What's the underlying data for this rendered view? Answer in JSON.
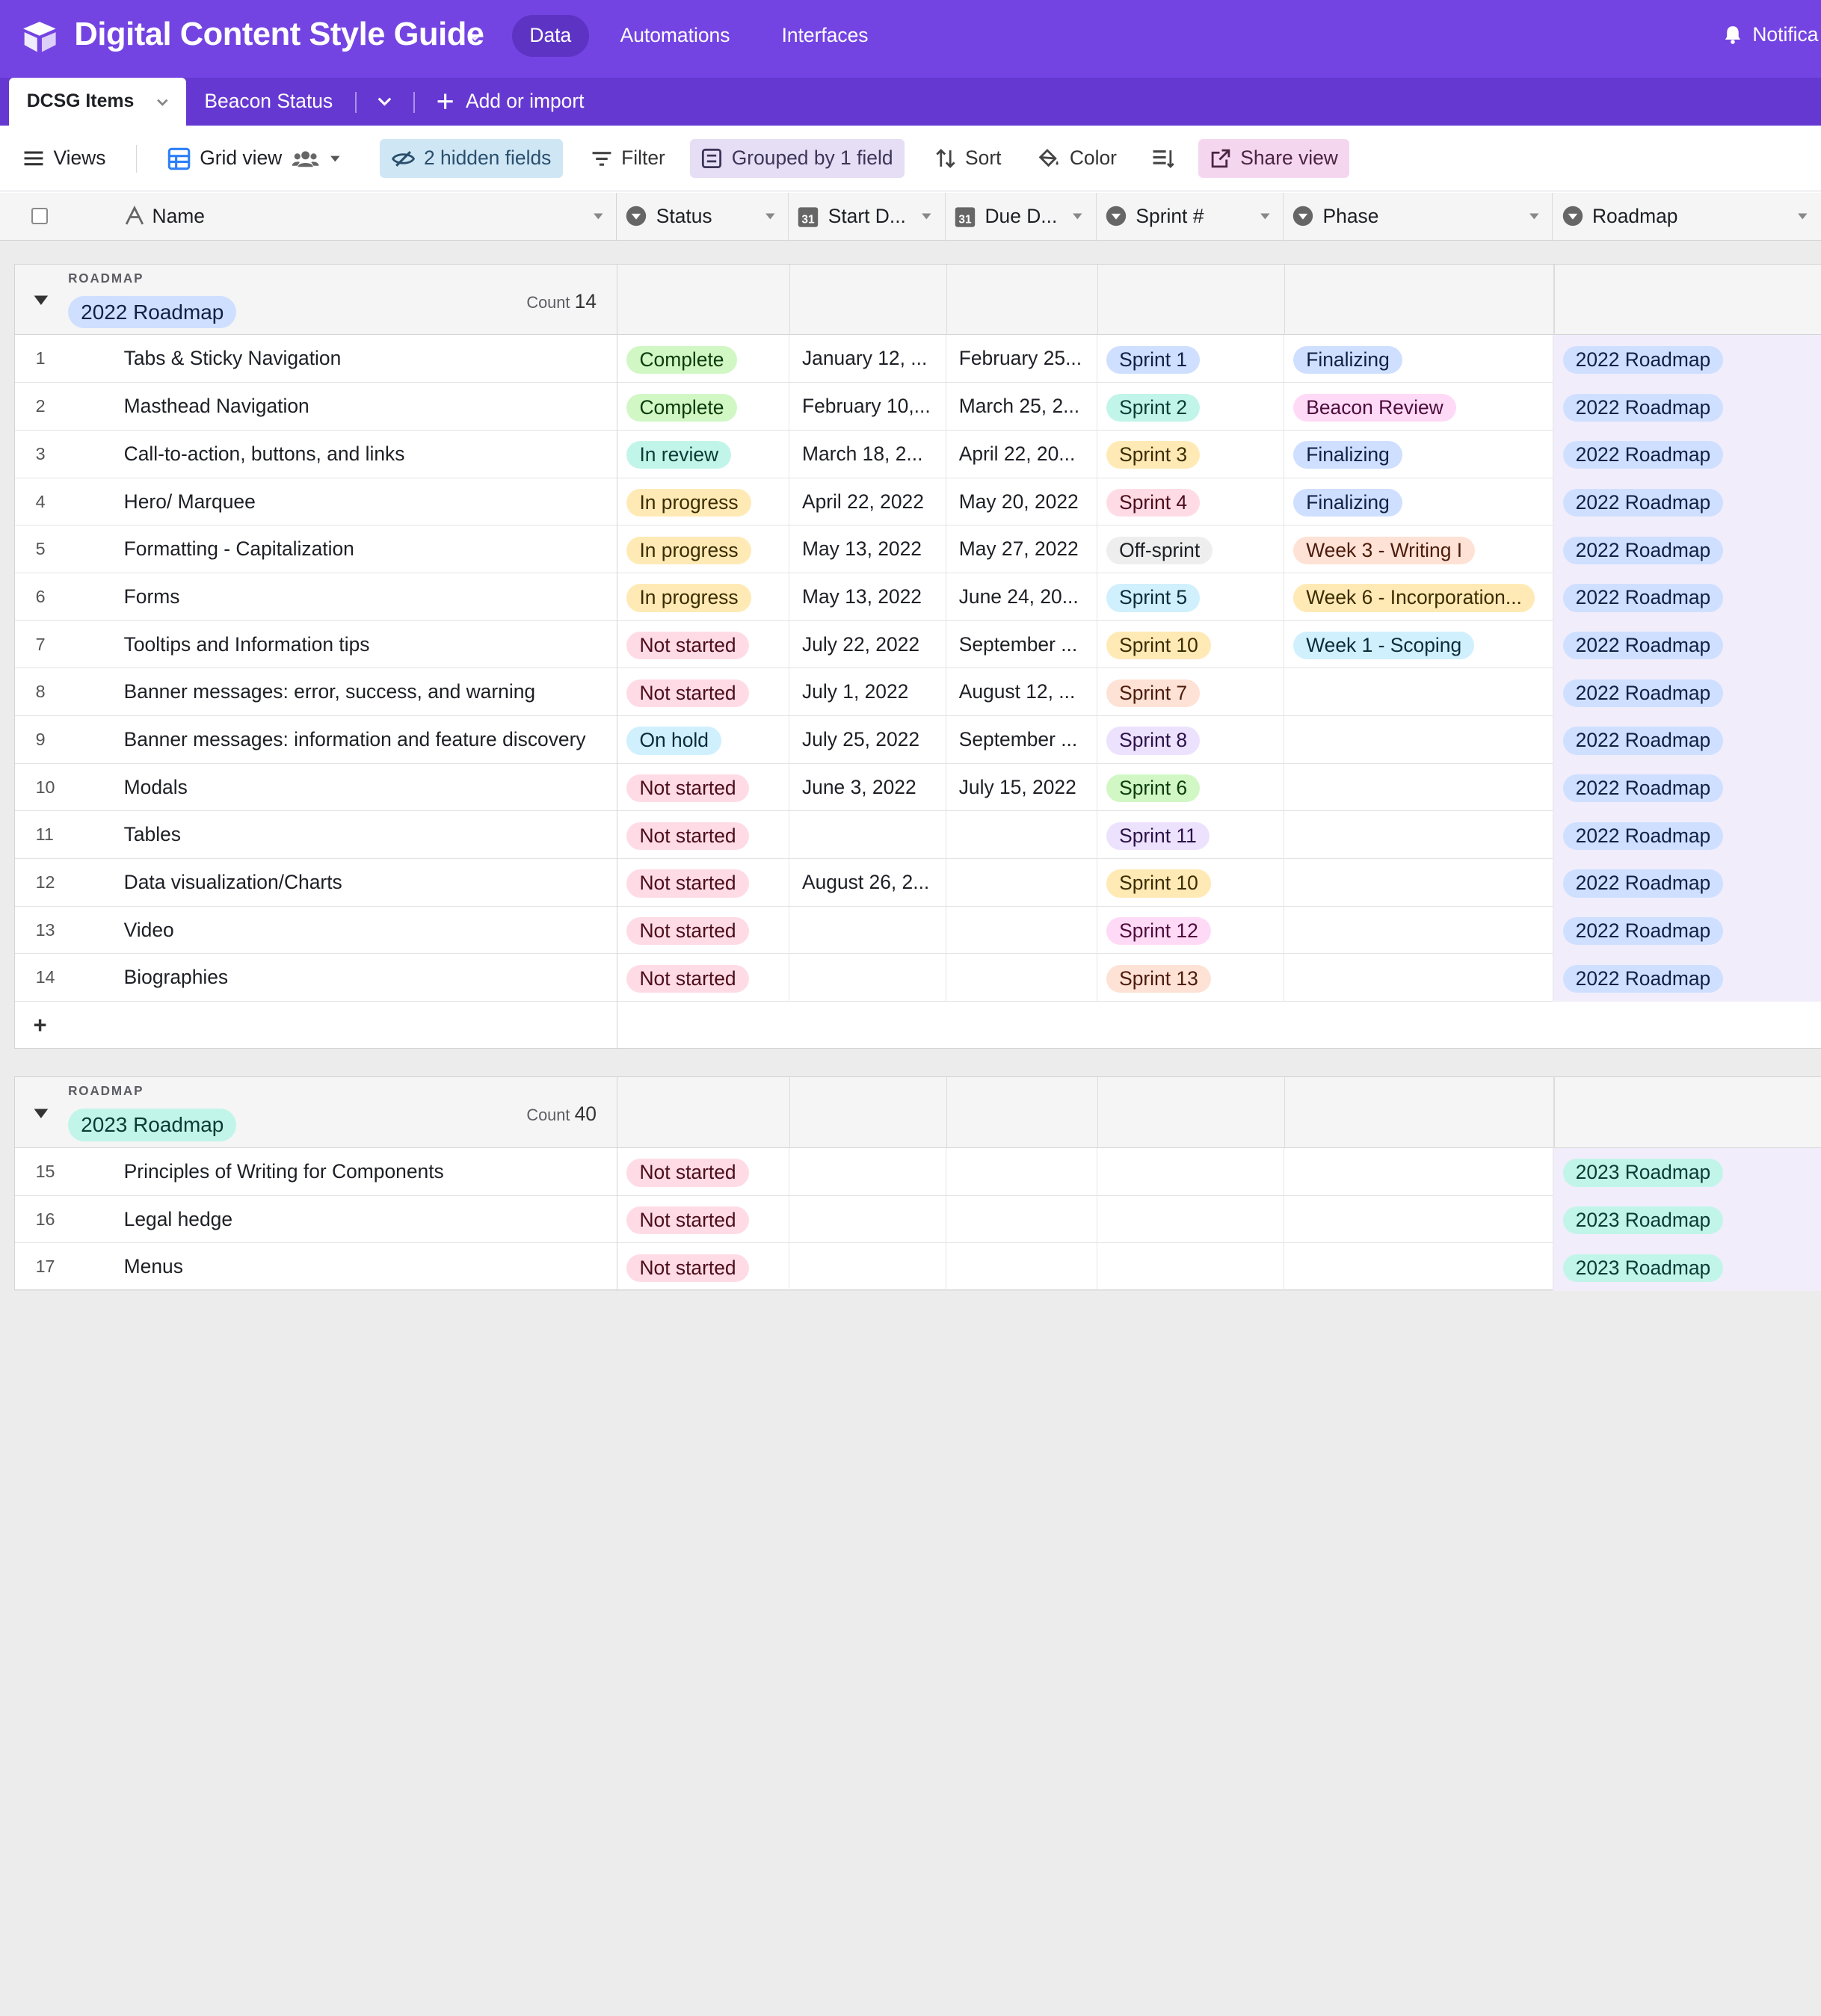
{
  "app": {
    "title": "Digital Content Style Guide",
    "nav": [
      "Data",
      "Automations",
      "Interfaces"
    ],
    "active_nav": "Data",
    "notifications_label": "Notifica"
  },
  "tabs": {
    "active": "DCSG Items",
    "other": "Beacon Status",
    "add_label": "Add or import"
  },
  "viewbar": {
    "views_label": "Views",
    "view_name": "Grid view",
    "hidden_fields": "2 hidden fields",
    "filter": "Filter",
    "grouped": "Grouped by 1 field",
    "sort": "Sort",
    "color": "Color",
    "share": "Share view"
  },
  "columns": {
    "name": "Name",
    "status": "Status",
    "start": "Start D...",
    "due": "Due D...",
    "sprint": "Sprint #",
    "phase": "Phase",
    "roadmap": "Roadmap",
    "date_icon_text": "31"
  },
  "colors": {
    "app_bar": "#7444e2",
    "status": {
      "Complete": [
        "#d1f7c4",
        "#0b3b0b"
      ],
      "In review": [
        "#c2f5e9",
        "#0b3b35"
      ],
      "In progress": [
        "#ffeab6",
        "#3b2c00"
      ],
      "Not started": [
        "#ffdce5",
        "#4c0c1c"
      ],
      "On hold": [
        "#d0f0fd",
        "#0b2b3b"
      ]
    },
    "sprint": {
      "Sprint 1": [
        "#cfdfff",
        "#102046"
      ],
      "Sprint 2": [
        "#c2f5e9",
        "#0b3b35"
      ],
      "Sprint 3": [
        "#ffeab6",
        "#3b2c00"
      ],
      "Sprint 4": [
        "#ffdce5",
        "#4c0c1c"
      ],
      "Off-sprint": [
        "#eeeeee",
        "#1d1f25"
      ],
      "Sprint 5": [
        "#d0f0fd",
        "#0b2b3b"
      ],
      "Sprint 10": [
        "#ffeab6",
        "#3b2c00"
      ],
      "Sprint 7": [
        "#fee2d5",
        "#4c1b0c"
      ],
      "Sprint 8": [
        "#ede2fe",
        "#2b1249"
      ],
      "Sprint 6": [
        "#d1f7c4",
        "#0b3b0b"
      ],
      "Sprint 11": [
        "#ede2fe",
        "#2b1249"
      ],
      "Sprint 12": [
        "#ffdaf6",
        "#4c0c3c"
      ],
      "Sprint 13": [
        "#fee2d5",
        "#4c1b0c"
      ]
    },
    "phase": {
      "Finalizing": [
        "#cfdfff",
        "#102046"
      ],
      "Beacon Review": [
        "#ffdaf6",
        "#4c0c3c"
      ],
      "Week 3 - Writing I": [
        "#fee2d5",
        "#4c1b0c"
      ],
      "Week 6 - Incorporation...": [
        "#ffeab6",
        "#3b2c00"
      ],
      "Week 1 - Scoping": [
        "#d0f0fd",
        "#0b2b3b"
      ]
    },
    "roadmap": {
      "2022 Roadmap": [
        "#cfdfff",
        "#102046"
      ],
      "2023 Roadmap": [
        "#c2f5e9",
        "#0b3b35"
      ]
    }
  },
  "groups": [
    {
      "field": "ROADMAP",
      "value": "2022 Roadmap",
      "count_label": "Count",
      "count": "14",
      "rows": [
        {
          "n": "1",
          "name": "Tabs & Sticky Navigation",
          "status": "Complete",
          "start": "January 12, ...",
          "due": "February 25...",
          "sprint": "Sprint 1",
          "phase": "Finalizing",
          "roadmap": "2022 Roadmap"
        },
        {
          "n": "2",
          "name": "Masthead Navigation",
          "status": "Complete",
          "start": "February 10,...",
          "due": "March 25, 2...",
          "sprint": "Sprint 2",
          "phase": "Beacon Review",
          "roadmap": "2022 Roadmap"
        },
        {
          "n": "3",
          "name": "Call-to-action, buttons, and links",
          "status": "In review",
          "start": "March 18, 2...",
          "due": "April 22, 20...",
          "sprint": "Sprint 3",
          "phase": "Finalizing",
          "roadmap": "2022 Roadmap"
        },
        {
          "n": "4",
          "name": "Hero/ Marquee",
          "status": "In progress",
          "start": "April 22, 2022",
          "due": "May 20, 2022",
          "sprint": "Sprint 4",
          "phase": "Finalizing",
          "roadmap": "2022 Roadmap"
        },
        {
          "n": "5",
          "name": "Formatting - Capitalization",
          "status": "In progress",
          "start": "May 13, 2022",
          "due": "May 27, 2022",
          "sprint": "Off-sprint",
          "phase": "Week 3 - Writing I",
          "roadmap": "2022 Roadmap"
        },
        {
          "n": "6",
          "name": "Forms",
          "status": "In progress",
          "start": "May 13, 2022",
          "due": "June 24, 20...",
          "sprint": "Sprint 5",
          "phase": "Week 6 - Incorporation...",
          "roadmap": "2022 Roadmap"
        },
        {
          "n": "7",
          "name": "Tooltips and Information tips",
          "status": "Not started",
          "start": "July 22, 2022",
          "due": "September ...",
          "sprint": "Sprint 10",
          "phase": "Week 1 - Scoping",
          "roadmap": "2022 Roadmap"
        },
        {
          "n": "8",
          "name": "Banner messages: error, success, and warning",
          "status": "Not started",
          "start": "July 1, 2022",
          "due": "August 12, ...",
          "sprint": "Sprint 7",
          "phase": "",
          "roadmap": "2022 Roadmap"
        },
        {
          "n": "9",
          "name": "Banner messages: information and feature discovery",
          "status": "On hold",
          "start": "July 25, 2022",
          "due": "September ...",
          "sprint": "Sprint 8",
          "phase": "",
          "roadmap": "2022 Roadmap"
        },
        {
          "n": "10",
          "name": "Modals",
          "status": "Not started",
          "start": "June 3, 2022",
          "due": "July 15, 2022",
          "sprint": "Sprint 6",
          "phase": "",
          "roadmap": "2022 Roadmap"
        },
        {
          "n": "11",
          "name": "Tables",
          "status": "Not started",
          "start": "",
          "due": "",
          "sprint": "Sprint 11",
          "phase": "",
          "roadmap": "2022 Roadmap"
        },
        {
          "n": "12",
          "name": "Data visualization/Charts",
          "status": "Not started",
          "start": "August 26, 2...",
          "due": "",
          "sprint": "Sprint 10",
          "phase": "",
          "roadmap": "2022 Roadmap"
        },
        {
          "n": "13",
          "name": "Video",
          "status": "Not started",
          "start": "",
          "due": "",
          "sprint": "Sprint 12",
          "phase": "",
          "roadmap": "2022 Roadmap"
        },
        {
          "n": "14",
          "name": "Biographies",
          "status": "Not started",
          "start": "",
          "due": "",
          "sprint": "Sprint 13",
          "phase": "",
          "roadmap": "2022 Roadmap"
        }
      ],
      "add_row_label": "+"
    },
    {
      "field": "ROADMAP",
      "value": "2023 Roadmap",
      "count_label": "Count",
      "count": "40",
      "rows": [
        {
          "n": "15",
          "name": "Principles of Writing for Components",
          "status": "Not started",
          "start": "",
          "due": "",
          "sprint": "",
          "phase": "",
          "roadmap": "2023 Roadmap"
        },
        {
          "n": "16",
          "name": "Legal hedge",
          "status": "Not started",
          "start": "",
          "due": "",
          "sprint": "",
          "phase": "",
          "roadmap": "2023 Roadmap"
        },
        {
          "n": "17",
          "name": "Menus",
          "status": "Not started",
          "start": "",
          "due": "",
          "sprint": "",
          "phase": "",
          "roadmap": "2023 Roadmap"
        }
      ]
    }
  ]
}
